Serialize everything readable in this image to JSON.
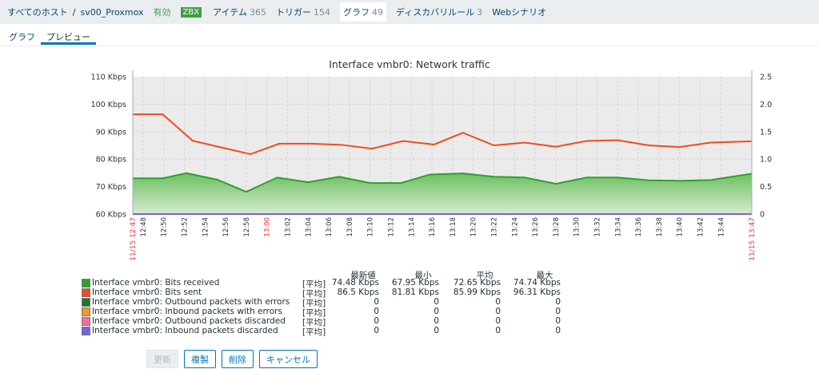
{
  "nav": {
    "all_hosts": "すべてのホスト",
    "separator": "/",
    "host": "sv00_Proxmox",
    "status": "有効",
    "zbx": "ZBX",
    "items_label": "アイテム",
    "items_count": "365",
    "triggers_label": "トリガー",
    "triggers_count": "154",
    "graphs_label": "グラフ",
    "graphs_count": "49",
    "discovery_label": "ディスカバリルール",
    "discovery_count": "3",
    "web_label": "Webシナリオ"
  },
  "tabs": {
    "graph": "グラフ",
    "preview": "プレビュー"
  },
  "buttons": {
    "update": "更新",
    "clone": "複製",
    "delete": "削除",
    "cancel": "キャンセル"
  },
  "legend": {
    "headers": [
      "最新値",
      "最小",
      "平均",
      "最大"
    ],
    "items": [
      {
        "name": "Interface vmbr0: Bits received",
        "fn": "[平均]",
        "last": "74.48 Kbps",
        "min": "67.95 Kbps",
        "avg": "72.65 Kbps",
        "max": "74.74 Kbps",
        "color": "#2ca02c"
      },
      {
        "name": "Interface vmbr0: Bits sent",
        "fn": "[平均]",
        "last": "86.5 Kbps",
        "min": "81.81 Kbps",
        "avg": "85.99 Kbps",
        "max": "96.31 Kbps",
        "color": "#f14b1c"
      },
      {
        "name": "Interface vmbr0: Outbound packets with errors",
        "fn": "[平均]",
        "last": "0",
        "min": "0",
        "avg": "0",
        "max": "0",
        "color": "#1a7a2a"
      },
      {
        "name": "Interface vmbr0: Inbound packets with errors",
        "fn": "[平均]",
        "last": "0",
        "min": "0",
        "avg": "0",
        "max": "0",
        "color": "#f0992a"
      },
      {
        "name": "Interface vmbr0: Outbound packets discarded",
        "fn": "[平均]",
        "last": "0",
        "min": "0",
        "avg": "0",
        "max": "0",
        "color": "#f06ea0"
      },
      {
        "name": "Interface vmbr0: Inbound packets discarded",
        "fn": "[平均]",
        "last": "0",
        "min": "0",
        "avg": "0",
        "max": "0",
        "color": "#7b61e0"
      }
    ]
  },
  "chart_data": {
    "type": "line",
    "title": "Interface vmbr0: Network traffic",
    "start_label": "11/15 12:47",
    "end_label": "11/15 13:47",
    "x_range_minutes": [
      0,
      60
    ],
    "x_ticks": [
      "12:48",
      "12:50",
      "12:52",
      "12:54",
      "12:56",
      "12:58",
      "13:00",
      "13:02",
      "13:04",
      "13:06",
      "13:08",
      "13:10",
      "13:12",
      "13:14",
      "13:16",
      "13:18",
      "13:20",
      "13:22",
      "13:24",
      "13:26",
      "13:28",
      "13:30",
      "13:32",
      "13:34",
      "13:36",
      "13:38",
      "13:40",
      "13:42",
      "13:44"
    ],
    "ylim_left": [
      60,
      110
    ],
    "yticks_left": [
      "60 Kbps",
      "70 Kbps",
      "80 Kbps",
      "90 Kbps",
      "100 Kbps",
      "110 Kbps"
    ],
    "ylim_right": [
      0,
      2.5
    ],
    "yticks_right": [
      "0",
      "0.5",
      "1.0",
      "1.5",
      "2.0",
      "2.5"
    ],
    "series": [
      {
        "name": "Bits sent",
        "color": "#f14b1c",
        "points": [
          [
            0,
            96.3
          ],
          [
            2.9,
            96.3
          ],
          [
            5.8,
            86.7
          ],
          [
            8.5,
            84.3
          ],
          [
            11.4,
            81.8
          ],
          [
            14.2,
            85.6
          ],
          [
            17.2,
            85.6
          ],
          [
            20.2,
            85.2
          ],
          [
            23.2,
            83.8
          ],
          [
            26.2,
            86.6
          ],
          [
            29.2,
            85.3
          ],
          [
            32,
            89.6
          ],
          [
            35,
            85
          ],
          [
            38,
            86
          ],
          [
            41,
            84.5
          ],
          [
            44,
            86.6
          ],
          [
            47,
            86.9
          ],
          [
            50,
            85
          ],
          [
            53,
            84.4
          ],
          [
            56,
            86
          ],
          [
            60,
            86.5
          ]
        ]
      },
      {
        "name": "Bits received",
        "color": "#2ca02c",
        "fill": true,
        "points": [
          [
            0,
            73
          ],
          [
            2.9,
            73
          ],
          [
            5.2,
            74.9
          ],
          [
            8.2,
            72.5
          ],
          [
            11,
            68.1
          ],
          [
            14,
            73.3
          ],
          [
            17,
            71.6
          ],
          [
            20,
            73.6
          ],
          [
            23,
            71.3
          ],
          [
            26,
            71.3
          ],
          [
            28.8,
            74.4
          ],
          [
            32,
            74.8
          ],
          [
            35,
            73.6
          ],
          [
            38,
            73.3
          ],
          [
            41,
            71
          ],
          [
            44,
            73.3
          ],
          [
            47,
            73.3
          ],
          [
            50,
            72.3
          ],
          [
            53,
            72.1
          ],
          [
            56,
            72.4
          ],
          [
            60,
            74.7
          ]
        ]
      },
      {
        "name": "Inbound packets discarded",
        "color": "#7b61e0",
        "points": [
          [
            0,
            60
          ],
          [
            60,
            60
          ]
        ]
      }
    ]
  }
}
